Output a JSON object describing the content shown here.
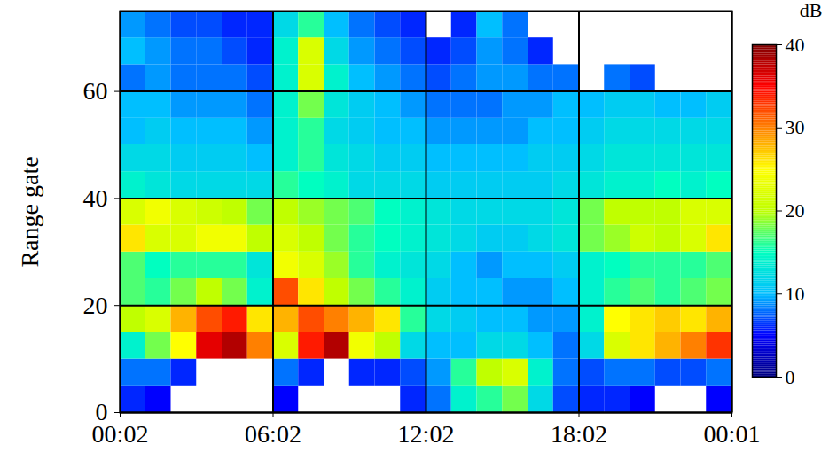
{
  "chart_data": {
    "type": "heatmap",
    "ylabel": "Range gate",
    "xlim": [
      0,
      24
    ],
    "xticks": [
      {
        "value": 0,
        "label": "00:02"
      },
      {
        "value": 6,
        "label": "06:02"
      },
      {
        "value": 12,
        "label": "12:02"
      },
      {
        "value": 18,
        "label": "18:02"
      },
      {
        "value": 24,
        "label": "00:01"
      }
    ],
    "ylim": [
      0,
      75
    ],
    "yticks": [
      0,
      20,
      40,
      60
    ],
    "grid": true,
    "x_bins": [
      0,
      1,
      2,
      3,
      4,
      5,
      6,
      7,
      8,
      9,
      10,
      11,
      12,
      13,
      14,
      15,
      16,
      17,
      18,
      19,
      20,
      21,
      22,
      23,
      24
    ],
    "y_bins": [
      0,
      5,
      10,
      15,
      20,
      25,
      30,
      35,
      40,
      45,
      50,
      55,
      60,
      65,
      70,
      75
    ],
    "cells": [
      [
        6,
        5,
        null,
        null,
        null,
        null,
        5,
        null,
        null,
        null,
        null,
        6,
        8,
        14,
        16,
        18,
        12,
        7,
        6,
        6,
        5,
        null,
        null,
        5
      ],
      [
        8,
        8,
        6,
        null,
        null,
        null,
        8,
        6,
        null,
        6,
        6,
        7,
        9,
        16,
        20,
        22,
        14,
        8,
        7,
        8,
        8,
        7,
        7,
        8
      ],
      [
        14,
        18,
        25,
        36,
        38,
        30,
        22,
        34,
        38,
        24,
        20,
        12,
        10,
        10,
        12,
        12,
        10,
        8,
        12,
        22,
        26,
        28,
        30,
        33
      ],
      [
        20,
        22,
        28,
        32,
        34,
        26,
        28,
        32,
        30,
        28,
        26,
        16,
        12,
        11,
        10,
        10,
        9,
        9,
        14,
        25,
        26,
        27,
        26,
        28
      ],
      [
        17,
        16,
        18,
        20,
        18,
        14,
        32,
        26,
        20,
        18,
        16,
        14,
        11,
        10,
        10,
        9,
        9,
        10,
        14,
        16,
        17,
        16,
        17,
        18
      ],
      [
        17,
        15,
        16,
        16,
        16,
        13,
        24,
        22,
        19,
        16,
        14,
        13,
        12,
        10,
        9,
        10,
        10,
        11,
        14,
        15,
        16,
        16,
        16,
        17
      ],
      [
        26,
        22,
        22,
        24,
        24,
        20,
        22,
        20,
        18,
        16,
        15,
        14,
        13,
        12,
        11,
        11,
        12,
        13,
        18,
        19,
        21,
        20,
        22,
        26
      ],
      [
        22,
        24,
        22,
        21,
        20,
        18,
        20,
        19,
        18,
        17,
        15,
        14,
        13,
        12,
        12,
        12,
        12,
        13,
        18,
        20,
        20,
        20,
        22,
        22
      ],
      [
        14,
        13,
        12,
        12,
        12,
        12,
        16,
        15,
        14,
        12,
        12,
        12,
        11,
        11,
        11,
        11,
        11,
        12,
        13,
        14,
        14,
        15,
        14,
        15
      ],
      [
        12,
        12,
        11,
        11,
        11,
        10,
        14,
        16,
        13,
        12,
        11,
        11,
        10,
        10,
        10,
        10,
        11,
        11,
        12,
        13,
        13,
        13,
        13,
        13
      ],
      [
        10,
        11,
        10,
        10,
        10,
        9,
        14,
        16,
        12,
        11,
        10,
        10,
        9,
        9,
        9,
        9,
        10,
        10,
        11,
        12,
        12,
        12,
        12,
        12
      ],
      [
        10,
        10,
        9,
        9,
        9,
        8,
        14,
        18,
        13,
        11,
        10,
        9,
        8,
        8,
        8,
        9,
        9,
        10,
        10,
        11,
        11,
        10,
        10,
        11
      ],
      [
        8,
        9,
        8,
        8,
        8,
        7,
        14,
        22,
        14,
        10,
        9,
        8,
        7,
        8,
        9,
        9,
        8,
        8,
        null,
        8,
        7,
        null,
        null,
        null
      ],
      [
        10,
        9,
        8,
        8,
        7,
        6,
        14,
        22,
        12,
        9,
        8,
        7,
        6,
        7,
        9,
        8,
        6,
        null,
        null,
        null,
        null,
        null,
        null,
        null
      ],
      [
        9,
        8,
        7,
        7,
        6,
        6,
        12,
        16,
        10,
        8,
        7,
        6,
        null,
        6,
        10,
        8,
        null,
        null,
        null,
        null,
        null,
        null,
        null,
        null
      ]
    ],
    "colorbar": {
      "label": "dB",
      "range": [
        0,
        40
      ],
      "ticks": [
        0,
        10,
        20,
        30,
        40
      ]
    }
  }
}
